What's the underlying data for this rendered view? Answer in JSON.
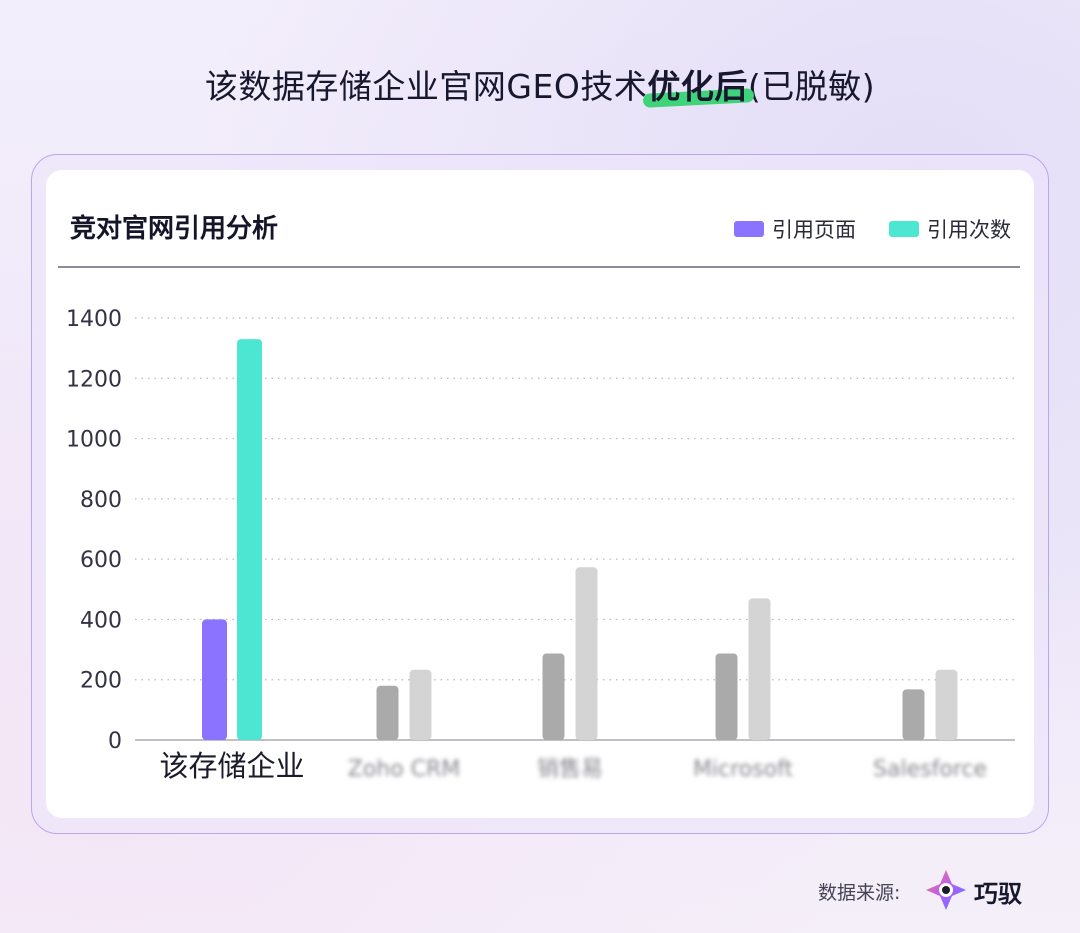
{
  "page": {
    "title_before": "该数据存储企业官网GEO技术",
    "title_highlight": "优化后",
    "title_after": "(已脱敏)"
  },
  "card": {
    "title": "竞对官网引用分析"
  },
  "chart_data": {
    "type": "bar",
    "title": "竞对官网引用分析",
    "categories": [
      "该存储企业",
      "Zoho CRM",
      "销售易",
      "Microsoft",
      "Salesforce"
    ],
    "categories_blurred": [
      false,
      true,
      true,
      true,
      true
    ],
    "series": [
      {
        "name": "引用页面",
        "values": [
          400,
          180,
          287,
          287,
          168
        ]
      },
      {
        "name": "引用次数",
        "values": [
          1330,
          233,
          573,
          470,
          233
        ]
      }
    ],
    "ylim": [
      0,
      1400
    ],
    "yticks": [
      0,
      200,
      400,
      600,
      800,
      1000,
      1200,
      1400
    ],
    "grid": true,
    "legend_position": "top-right",
    "colors": {
      "highlight_pages": "#8b73ff",
      "highlight_citations": "#4de6d2",
      "other_pages": "#aaaaaa",
      "other_citations": "#d4d4d4"
    }
  },
  "footer": {
    "source_label": "数据来源:",
    "brand_name": "巧驭"
  }
}
